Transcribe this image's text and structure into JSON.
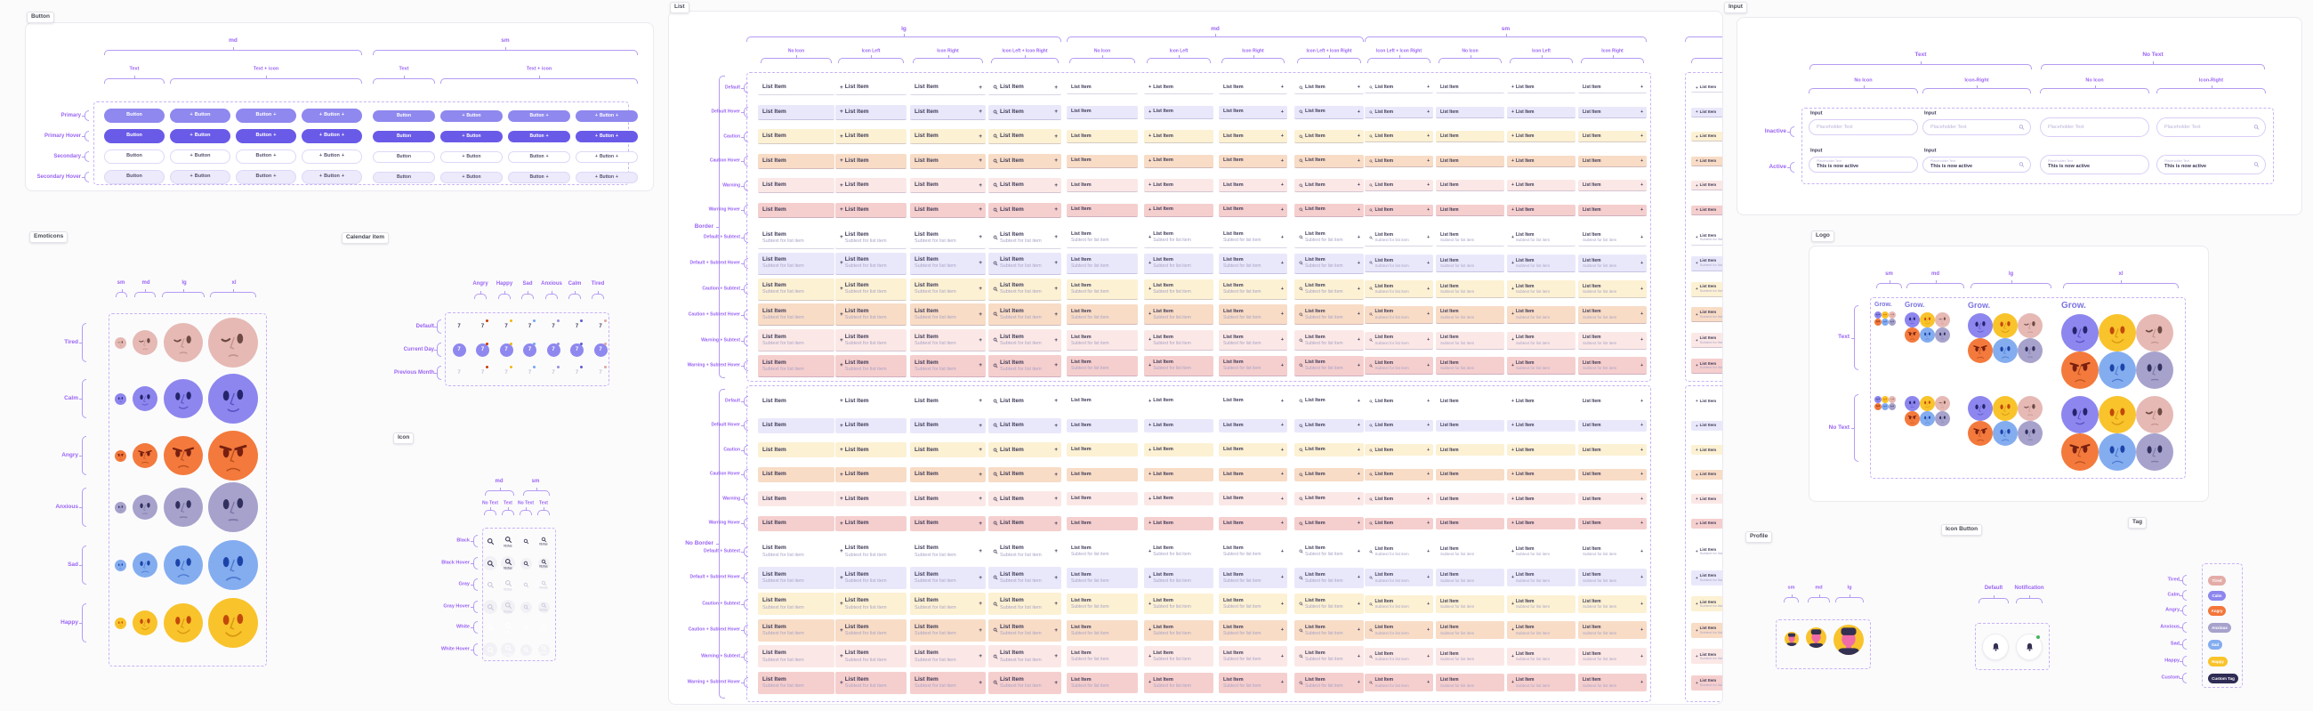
{
  "app": {
    "canvas_bg": "#FBFBFC"
  },
  "colors": {
    "annotation": "#9A63F5",
    "bracket": "#B49BF3",
    "dashed": "#C9B2F6",
    "navy": "#3B3755",
    "subtext": "#A9A1C6",
    "frame_border": "#EAEAF0"
  },
  "moods": {
    "tired": {
      "label": "Tired",
      "fill": "#E6B9B4",
      "eye": "#6E4A45",
      "line": "#C3948F",
      "dot": "#E2A49E"
    },
    "calm": {
      "label": "Calm",
      "fill": "#8D86EE",
      "eye": "#23246B",
      "line": "#5B54C6",
      "dot": "#5D5BD5"
    },
    "angry": {
      "label": "Angry",
      "fill": "#F37A3C",
      "eye": "#771F10",
      "line": "#BC4F1D",
      "dot": "#CC3B09"
    },
    "anxious": {
      "label": "Anxious",
      "fill": "#A6A2CC",
      "eye": "#32305E",
      "line": "#7C77A7",
      "dot": "#938EDB"
    },
    "sad": {
      "label": "Sad",
      "fill": "#84ADF0",
      "eye": "#1C44A8",
      "line": "#4C79CF",
      "dot": "#70A4F5"
    },
    "happy": {
      "label": "Happy",
      "fill": "#F9C32B",
      "eye": "#C2490B",
      "line": "#D8970F",
      "dot": "#F2B70D"
    }
  },
  "sections": {
    "button": {
      "chip": "Button",
      "size_groups": [
        "md",
        "sm"
      ],
      "type_groups": [
        "Text",
        "Text + icon",
        "Text",
        "Text + icon"
      ],
      "rows": [
        "Primary",
        "Primary Hover",
        "Secondary",
        "Secondary Hover"
      ],
      "button_label": "Button",
      "colors": {
        "primary": "#8F88EF",
        "primary_hover": "#6A5AE8",
        "primary_text": "#FFFFFF",
        "secondary_border": "#DCD8F8",
        "secondary_hover_bg": "#ECEAFB",
        "secondary_text": "#55506E"
      }
    },
    "emoticons": {
      "chip": "Emoticons",
      "sizes": [
        "sm",
        "md",
        "lg",
        "xl"
      ],
      "rows": [
        "tired",
        "calm",
        "angry",
        "anxious",
        "sad",
        "happy"
      ]
    },
    "calendar": {
      "chip": "Calendar item",
      "columns": [
        "angry",
        "happy",
        "sad",
        "anxious",
        "calm",
        "tired"
      ],
      "rows": [
        "Default",
        "Current Day",
        "Previous Month"
      ],
      "day": "7",
      "current_bg": "#8F88EF",
      "previous_text": "#C5C2D4"
    },
    "icon": {
      "chip": "Icon",
      "size_groups": [
        "md",
        "sm"
      ],
      "col_labels": [
        "No Text",
        "Text",
        "No Text",
        "Text"
      ],
      "rows": [
        "Black",
        "Black Hover",
        "Gray",
        "Gray Hover",
        "White",
        "White Hover"
      ],
      "caption": "fdsfas",
      "black": "#33304F",
      "gray": "#C9C6D6",
      "white": "#FFFFFF",
      "hover_bg": "#F2F1F5"
    },
    "list": {
      "chip": "List",
      "size_groups": [
        "lg",
        "md",
        "sm"
      ],
      "col_labels_lg_md": [
        "No Icon",
        "Icon Left",
        "Icon Right",
        "Icon Left + Icon Right"
      ],
      "col_labels_sm": [
        "Icon Left + Icon Right",
        "No Icon",
        "Icon Left",
        "Icon Right"
      ],
      "group_labels": [
        "Border",
        "No Border"
      ],
      "row_labels": [
        "Default",
        "Default Hover",
        "Caution",
        "Caution Hover",
        "Warning",
        "Warning Hover",
        "Default + Subtext",
        "Default + Subtext Hover",
        "Caution + Subtext",
        "Caution + Subtext Hover",
        "Warning + Subtext",
        "Warning + Subtext Hover"
      ],
      "item_text": "List Item",
      "subtext": "Subtext for list item",
      "row_colors": {
        "default": "#FFFFFF",
        "default-hover": "#E9E8FB",
        "caution": "#FCF1D3",
        "caution-hover": "#F8DCC6",
        "warning": "#FBE8E6",
        "warning-hover": "#F5CFCE"
      }
    },
    "input": {
      "chip": "Input",
      "top_groups": [
        "Text",
        "No Text"
      ],
      "col_labels": [
        "No Icon",
        "Icon-Right",
        "No Icon",
        "Icon-Right"
      ],
      "rows": [
        "Inactive",
        "Active"
      ],
      "field_label": "Input",
      "placeholder": "Placeholder Text",
      "active_value": "This is now active",
      "border": "#D9CDF6",
      "placeholder_color": "#BCB2D9"
    },
    "logo": {
      "chip": "Logo",
      "sizes": [
        "sm",
        "md",
        "lg",
        "xl"
      ],
      "rows": [
        "Text",
        "No Text"
      ],
      "wordmark": "Grow.",
      "wordmark_color": "#7B74E2"
    },
    "profile": {
      "chip": "Profile",
      "sizes": [
        "sm",
        "md",
        "lg"
      ],
      "bg": "#F8C32B",
      "face": "#F06CA8",
      "hair": "#333052"
    },
    "icon_button": {
      "chip": "Icon Button",
      "columns": [
        "Default",
        "Notification"
      ],
      "bell": "#333052",
      "dot": "#43B75D"
    },
    "tag": {
      "chip": "Tag",
      "rows": [
        "Tired",
        "Calm",
        "Angry",
        "Anxious",
        "Sad",
        "Happy",
        "Custom"
      ],
      "tags": [
        {
          "text": "Tired",
          "color": "#E3ACA7"
        },
        {
          "text": "Calm",
          "color": "#8D86EE"
        },
        {
          "text": "Angry",
          "color": "#F3763A"
        },
        {
          "text": "Anxious",
          "color": "#A6A2CC"
        },
        {
          "text": "Sad",
          "color": "#84ADF0"
        },
        {
          "text": "Happy",
          "color": "#F9C32B"
        },
        {
          "text": "Custom Tag",
          "color": "#2F2C55"
        }
      ]
    }
  }
}
